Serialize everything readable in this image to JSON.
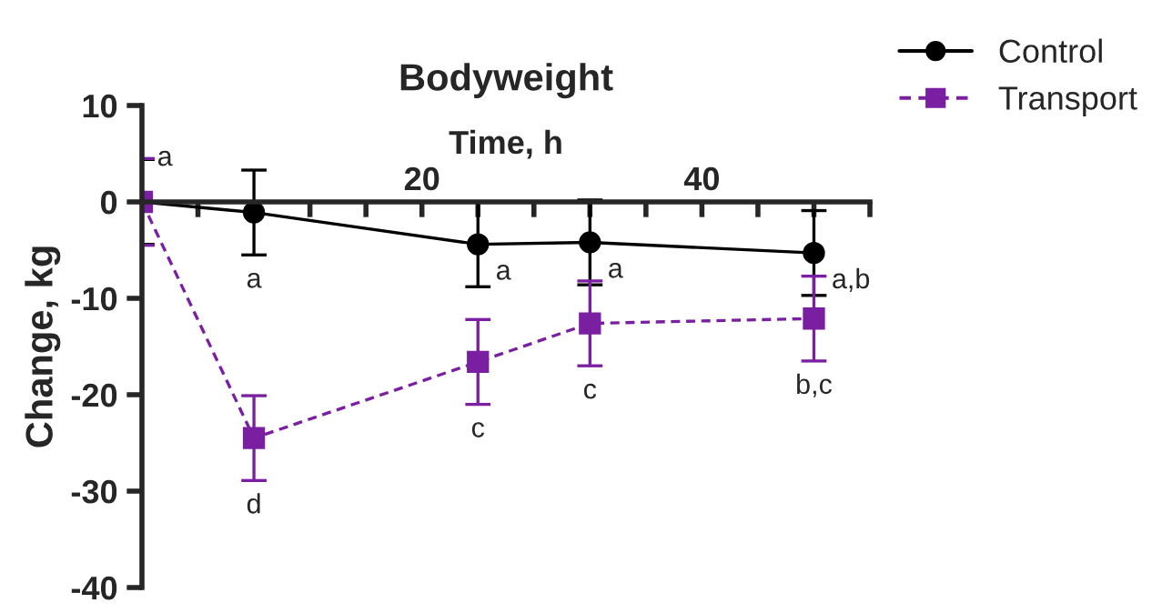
{
  "chart_data": {
    "type": "line",
    "title": "Bodyweight",
    "xlabel": "Time, h",
    "ylabel": "Change, kg",
    "x": [
      0,
      8,
      24,
      32,
      48
    ],
    "series": [
      {
        "name": "Control",
        "color": "#000000",
        "marker": "circle",
        "line_style": "solid",
        "values": [
          0,
          -1.1,
          -4.4,
          -4.2,
          -5.3
        ],
        "errors": [
          4.4,
          4.4,
          4.4,
          4.4,
          4.4
        ]
      },
      {
        "name": "Transport",
        "color": "#7b1fa2",
        "marker": "square",
        "line_style": "dashed",
        "values": [
          0,
          -24.5,
          -16.6,
          -12.6,
          -12.1
        ],
        "errors": [
          4.5,
          4.4,
          4.4,
          4.4,
          4.4
        ]
      }
    ],
    "xlim": [
      0,
      52
    ],
    "xticks": [
      {
        "value": 4,
        "label": null
      },
      {
        "value": 8,
        "label": null
      },
      {
        "value": 12,
        "label": null
      },
      {
        "value": 16,
        "label": null
      },
      20,
      {
        "value": 24,
        "label": null
      },
      {
        "value": 28,
        "label": null
      },
      {
        "value": 32,
        "label": null
      },
      {
        "value": 36,
        "label": null
      },
      40,
      {
        "value": 44,
        "label": null
      },
      {
        "value": 48,
        "label": null
      },
      {
        "value": 52,
        "label": null
      }
    ],
    "ylim": [
      -40,
      10
    ],
    "yticks": [
      -40,
      -30,
      -20,
      -10,
      0,
      10
    ],
    "annotations": [
      {
        "text": "a",
        "x": 0,
        "y": 0
      },
      {
        "text": "a",
        "x": 8,
        "y": -1.1
      },
      {
        "text": "a",
        "x": 24,
        "y": -4.4
      },
      {
        "text": "a",
        "x": 32,
        "y": -4.2
      },
      {
        "text": "a,b",
        "x": 48,
        "y": -5.3
      },
      {
        "text": "d",
        "x": 8,
        "y": -24.5
      },
      {
        "text": "c",
        "x": 24,
        "y": -16.6
      },
      {
        "text": "c",
        "x": 32,
        "y": -12.6
      },
      {
        "text": "b,c",
        "x": 48,
        "y": -12.1
      }
    ],
    "legend": "top right",
    "grid": false
  }
}
